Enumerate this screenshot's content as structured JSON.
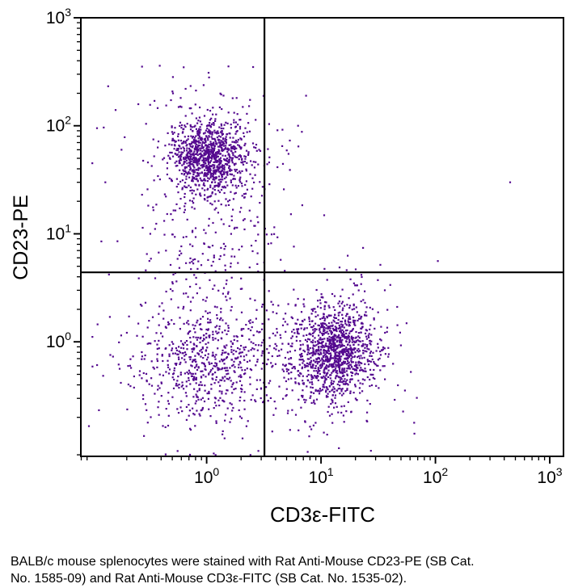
{
  "figure": {
    "bg_color": "#ffffff",
    "caption_lines": [
      "BALB/c mouse splenocytes were stained with Rat Anti-Mouse CD23-PE (SB Cat.",
      "No. 1585-09) and Rat Anti-Mouse CD3ε-FITC (SB Cat. No. 1535-02)."
    ]
  },
  "chart_data": {
    "type": "scatter",
    "title": "",
    "xlabel": "CD3ε-FITC",
    "ylabel": "CD23-PE",
    "xscale": "log",
    "yscale": "log",
    "xlim": [
      0.0794,
      1318
    ],
    "ylim": [
      0.0871,
      1000
    ],
    "tick_label_base": "10",
    "x_tick_exponents": [
      0,
      1,
      2,
      3
    ],
    "y_tick_exponents": [
      0,
      1,
      2,
      3
    ],
    "grid": false,
    "legend": "none",
    "gates": {
      "x": 3.2,
      "y": 4.4
    },
    "dot_color": "#54098F",
    "dot_size_px": 2.2,
    "point_clusters_log10": [
      {
        "name": "CD23-pos-B-cells-core",
        "n": 950,
        "cx": 0.02,
        "cy": 1.72,
        "sx": 0.16,
        "sy": 0.17
      },
      {
        "name": "CD23-pos-B-cells-halo",
        "n": 260,
        "cx": 0.0,
        "cy": 1.55,
        "sx": 0.35,
        "sy": 0.45
      },
      {
        "name": "B-cluster-lower-tail",
        "n": 140,
        "cx": 0.03,
        "cy": 0.75,
        "sx": 0.28,
        "sy": 0.45
      },
      {
        "name": "double-negative-core",
        "n": 480,
        "cx": -0.03,
        "cy": -0.24,
        "sx": 0.27,
        "sy": 0.27
      },
      {
        "name": "double-negative-halo",
        "n": 180,
        "cx": -0.05,
        "cy": -0.2,
        "sx": 0.45,
        "sy": 0.4
      },
      {
        "name": "CD3-pos-T-cells-core",
        "n": 950,
        "cx": 1.12,
        "cy": -0.09,
        "sx": 0.17,
        "sy": 0.2
      },
      {
        "name": "CD3-pos-T-cells-halo",
        "n": 300,
        "cx": 1.08,
        "cy": -0.12,
        "sx": 0.3,
        "sy": 0.35
      },
      {
        "name": "lower-quadrant-bridge",
        "n": 70,
        "cx": 0.6,
        "cy": -0.15,
        "sx": 0.4,
        "sy": 0.35
      }
    ],
    "extra_points": [
      [
        1.05,
        280
      ],
      [
        6.3,
        100
      ],
      [
        6.8,
        88
      ],
      [
        7.4,
        190
      ],
      [
        5.2,
        55
      ],
      [
        4.6,
        92
      ],
      [
        450,
        30
      ],
      [
        105,
        5.6
      ],
      [
        0.11,
        95
      ],
      [
        0.13,
        30
      ],
      [
        0.18,
        60
      ],
      [
        0.12,
        8.5
      ],
      [
        0.16,
        140
      ],
      [
        0.1,
        45
      ],
      [
        0.14,
        4.2
      ],
      [
        0.35,
        170
      ],
      [
        0.3,
        6.5
      ]
    ]
  }
}
